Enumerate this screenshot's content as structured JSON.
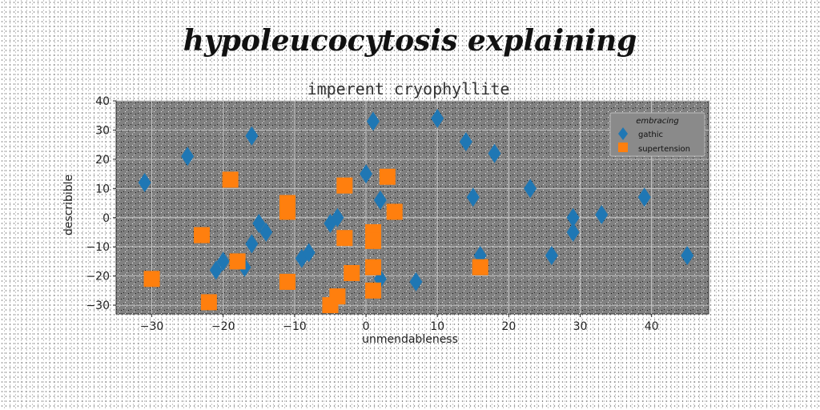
{
  "suptitle": "hypoleucocytosis explaining",
  "chart_data": {
    "type": "scatter",
    "title": "imperent cryophyllite",
    "xlabel": "unmendableness",
    "ylabel": "describible",
    "xlim": [
      -35,
      48
    ],
    "ylim": [
      -33,
      40
    ],
    "xticks": [
      -30,
      -20,
      -10,
      0,
      10,
      20,
      30,
      40
    ],
    "yticks": [
      -30,
      -20,
      -10,
      0,
      10,
      20,
      30,
      40
    ],
    "grid": true,
    "legend": {
      "title": "embracing",
      "placement": "top-right"
    },
    "series": [
      {
        "name": "gathic",
        "marker": "diamond",
        "color": "#1f77b4",
        "points": [
          [
            -31,
            12
          ],
          [
            -25,
            21
          ],
          [
            -16,
            28
          ],
          [
            -21,
            -18
          ],
          [
            -20,
            -15
          ],
          [
            -17,
            -17
          ],
          [
            -16,
            -9
          ],
          [
            -15,
            -2
          ],
          [
            -14,
            -5
          ],
          [
            -9,
            -14
          ],
          [
            -8,
            -12
          ],
          [
            -5,
            -2
          ],
          [
            -4,
            0
          ],
          [
            0,
            15
          ],
          [
            1,
            33
          ],
          [
            2,
            6
          ],
          [
            2,
            -21
          ],
          [
            7,
            -22
          ],
          [
            10,
            34
          ],
          [
            14,
            26
          ],
          [
            15,
            7
          ],
          [
            16,
            -13
          ],
          [
            18,
            22
          ],
          [
            23,
            10
          ],
          [
            26,
            -13
          ],
          [
            29,
            -5
          ],
          [
            29,
            0
          ],
          [
            33,
            1
          ],
          [
            39,
            7
          ],
          [
            45,
            -13
          ]
        ]
      },
      {
        "name": "supertension",
        "marker": "square",
        "color": "#ff7f0e",
        "points": [
          [
            -30,
            -21
          ],
          [
            -23,
            -6
          ],
          [
            -22,
            -29
          ],
          [
            -19,
            13
          ],
          [
            -18,
            -15
          ],
          [
            -11,
            5
          ],
          [
            -11,
            2
          ],
          [
            -11,
            -22
          ],
          [
            -5,
            -30
          ],
          [
            -4,
            -27
          ],
          [
            -3,
            11
          ],
          [
            -3,
            -7
          ],
          [
            -2,
            -19
          ],
          [
            1,
            -5
          ],
          [
            1,
            -8
          ],
          [
            1,
            -17
          ],
          [
            1,
            -25
          ],
          [
            3,
            14
          ],
          [
            4,
            2
          ],
          [
            16,
            -17
          ]
        ]
      }
    ]
  }
}
